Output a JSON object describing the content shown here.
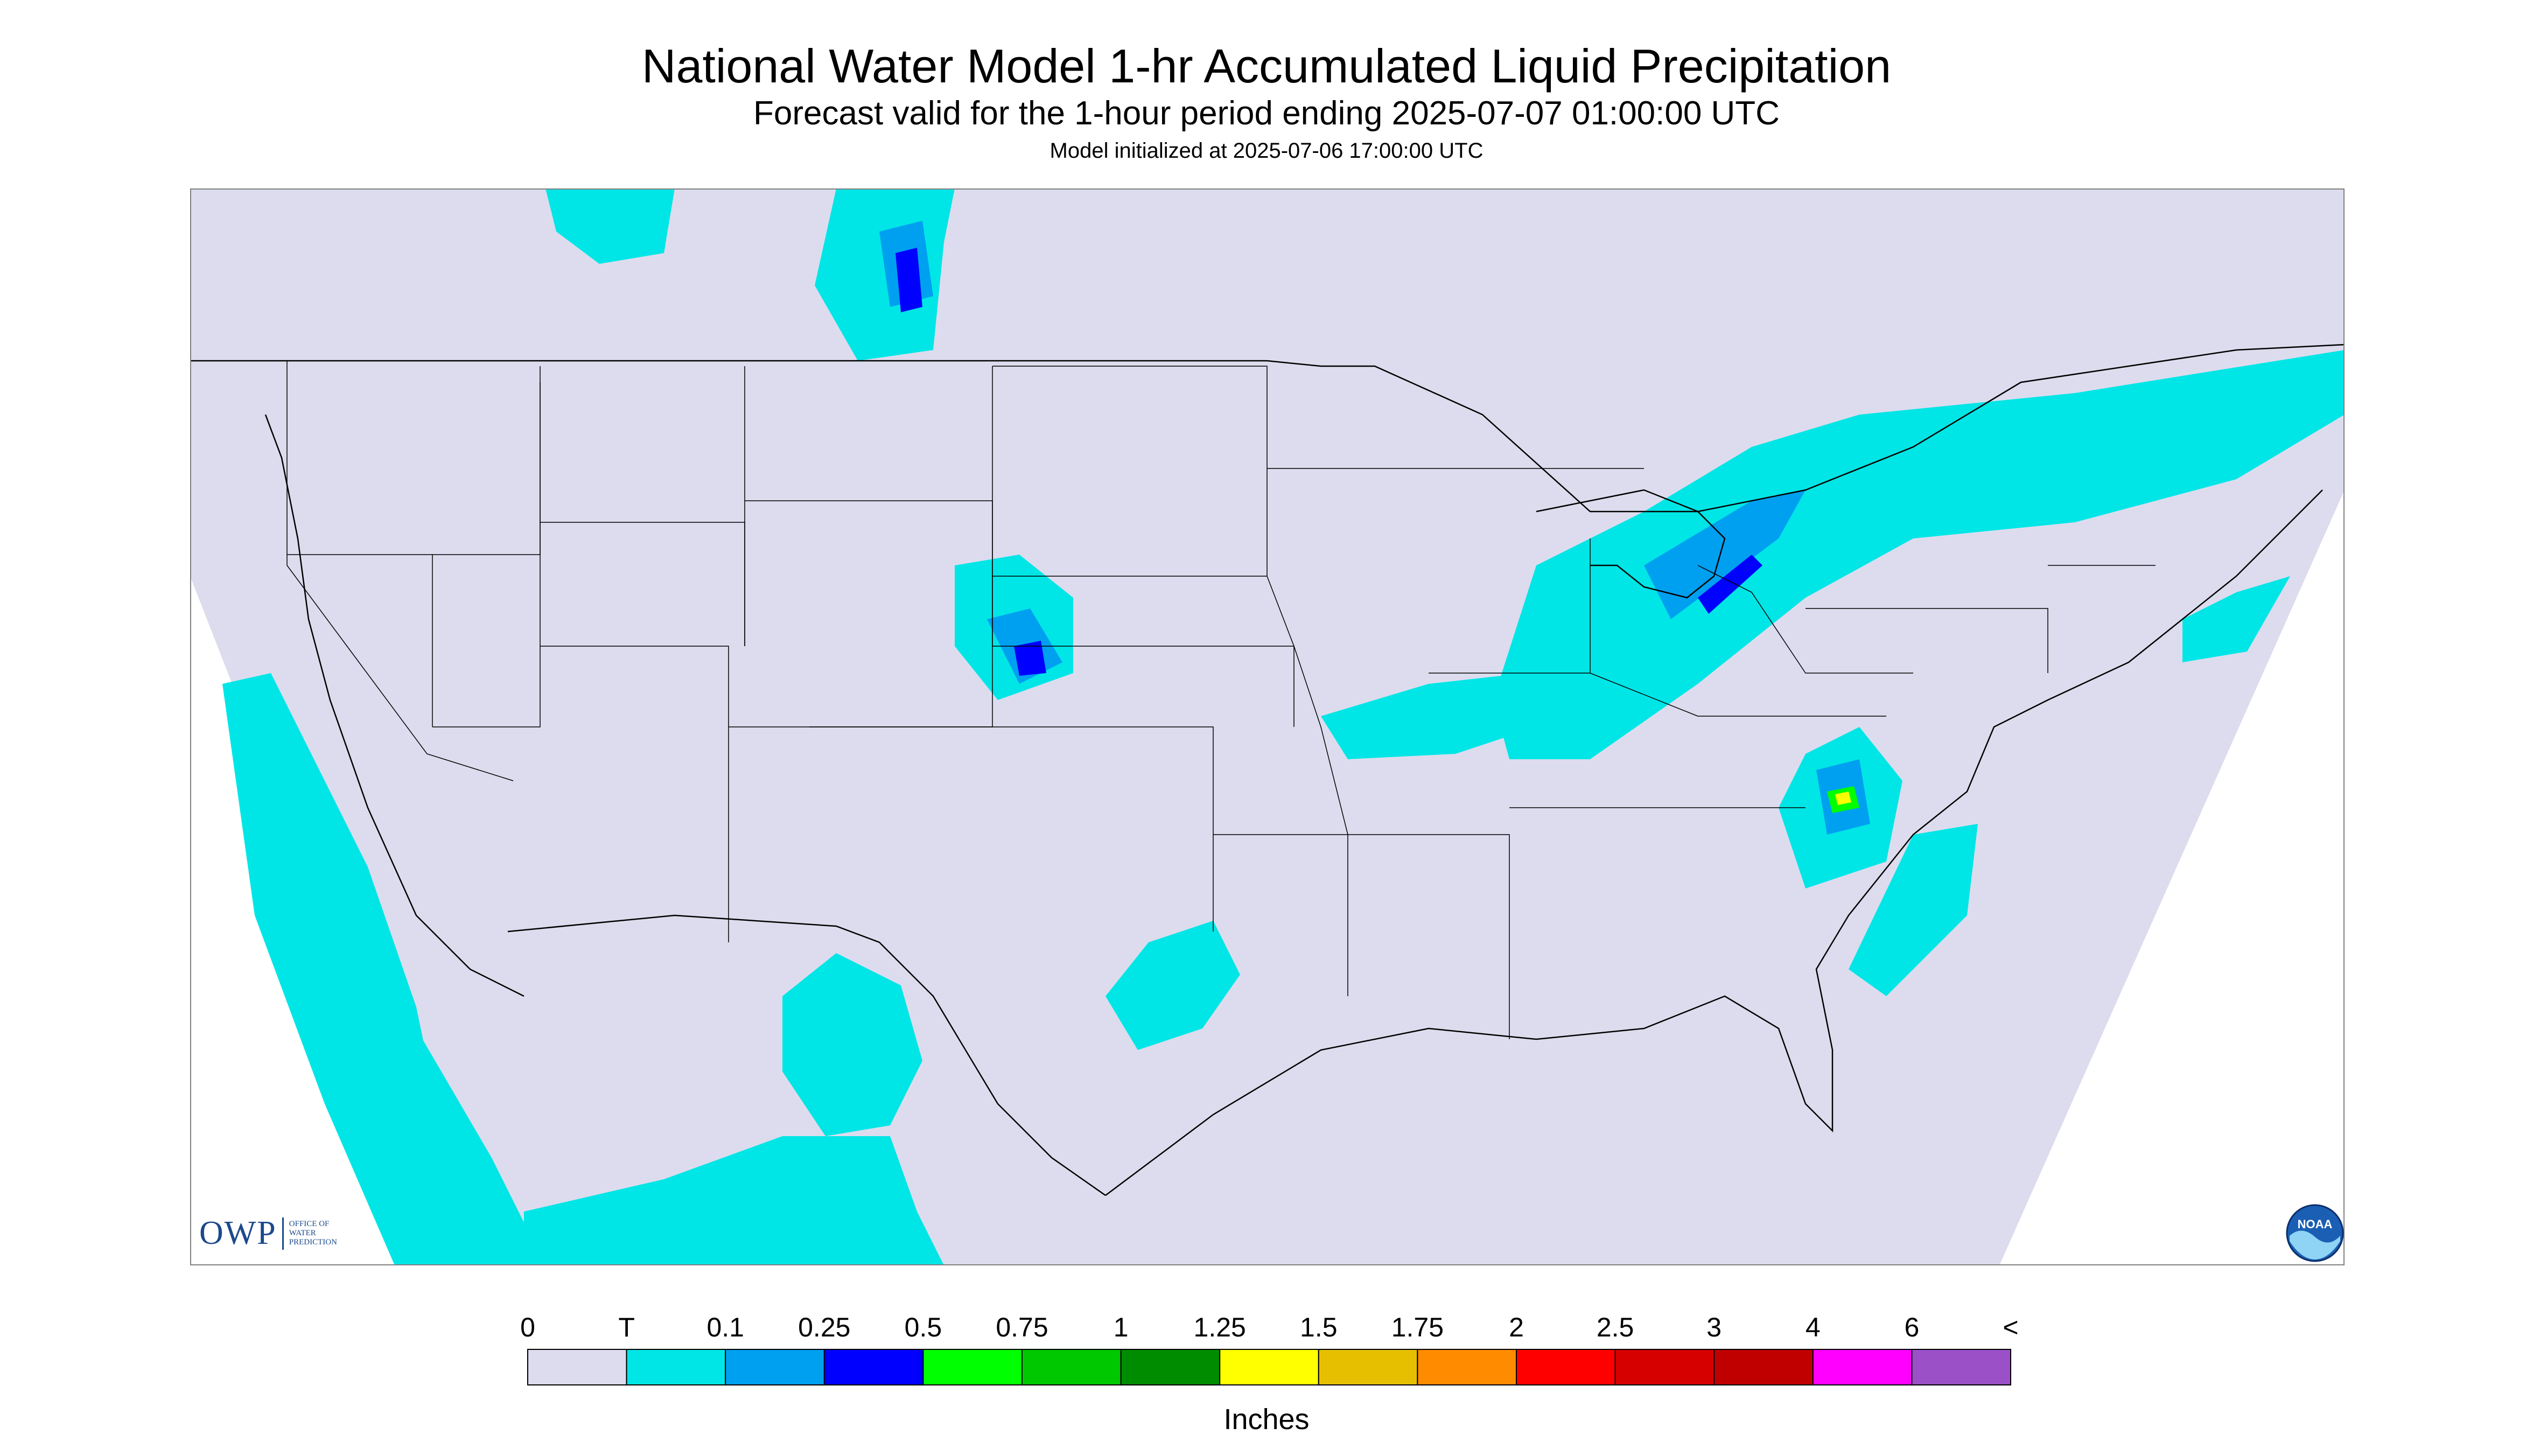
{
  "title": "National Water Model 1-hr Accumulated Liquid Precipitation",
  "subtitle": "Forecast valid for the 1-hour period ending 2025-07-07 01:00:00 UTC",
  "init_line": "Model initialized at 2025-07-06 17:00:00 UTC",
  "map": {
    "region": "Contiguous United States",
    "background_color": "#dcdcee",
    "ocean_color": "#ffffff",
    "boundary_color": "#000000",
    "precip_colors_used": [
      "#00e6e6",
      "#00a0f0",
      "#0000ff",
      "#00ff00",
      "#00c800",
      "#008c00",
      "#ffff00"
    ]
  },
  "legend": {
    "units": "Inches",
    "tick_labels": [
      "0",
      "T",
      "0.1",
      "0.25",
      "0.5",
      "0.75",
      "1",
      "1.25",
      "1.5",
      "1.75",
      "2",
      "2.5",
      "3",
      "4",
      "6",
      "<"
    ],
    "colors": [
      "#dcdcee",
      "#00e6e6",
      "#00a0f0",
      "#0000ff",
      "#00ff00",
      "#00c800",
      "#008c00",
      "#ffff00",
      "#e6c000",
      "#ff8c00",
      "#ff0000",
      "#d60000",
      "#c00000",
      "#ff00ff",
      "#9b50c8"
    ]
  },
  "logos": {
    "owp": {
      "big": "OWP",
      "small": [
        "OFFICE OF",
        "WATER",
        "PREDICTION"
      ]
    },
    "noaa": {
      "text": "NOAA"
    }
  }
}
